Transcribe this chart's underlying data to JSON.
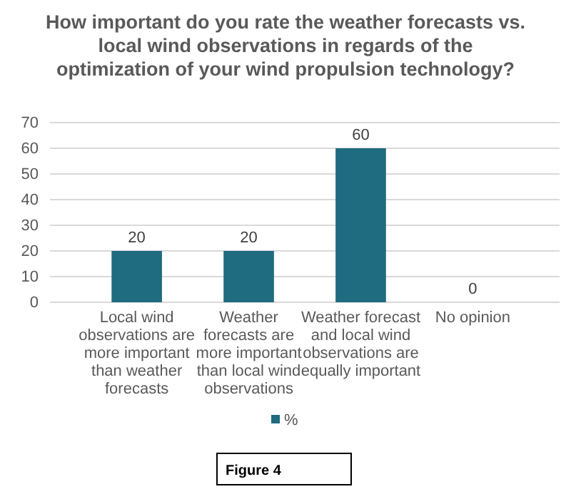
{
  "chart_data": {
    "type": "bar",
    "title": "How important do you rate the weather forecasts vs. local wind observations in regards of the optimization of your wind propulsion technology?",
    "categories": [
      "Local wind observations are more important than weather forecasts",
      "Weather forecasts are more important than local wind observations",
      "Weather forecast and local wind observations are equally important",
      "No opinion"
    ],
    "series": [
      {
        "name": "%",
        "color": "#1f6b80",
        "values": [
          20,
          20,
          60,
          0
        ]
      }
    ],
    "ylim": [
      0,
      70
    ],
    "yticks": [
      0,
      10,
      20,
      30,
      40,
      50,
      60,
      70
    ],
    "grid": "y",
    "data_labels": true,
    "legend": "bottom",
    "annotations": [
      "Figure 4"
    ]
  }
}
